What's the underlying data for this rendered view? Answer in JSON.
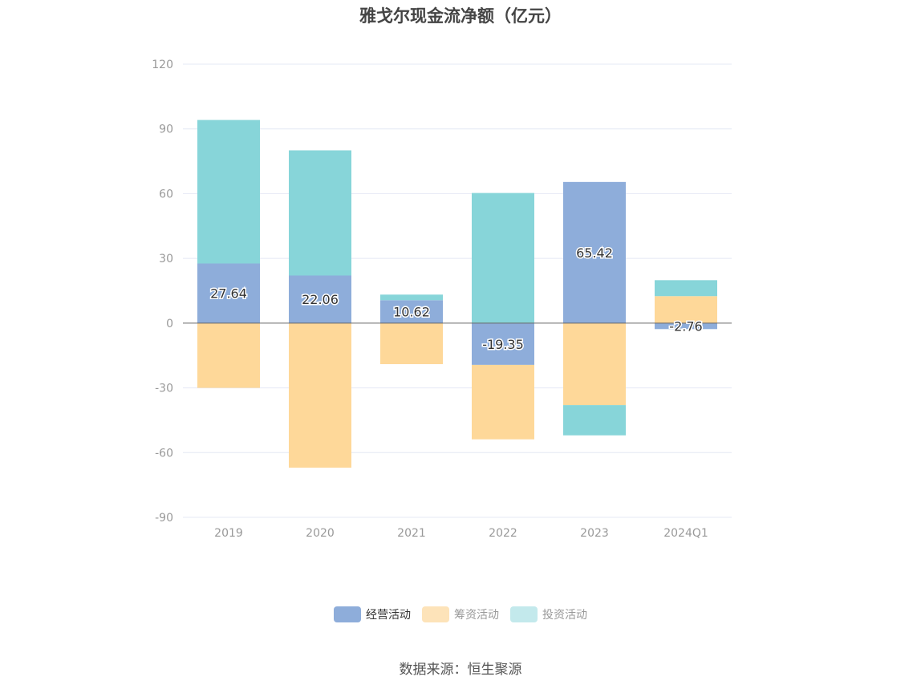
{
  "title": "雅戈尔现金流净额（亿元）",
  "source": "数据来源：恒生聚源",
  "colors": {
    "operating": "#8eadda",
    "financing": "#fed899",
    "investing": "#87d5d9",
    "grid": "#e4e8f4",
    "axis_text": "#999999"
  },
  "legend": [
    {
      "label": "经营活动",
      "color": "#8eadda",
      "active": true
    },
    {
      "label": "筹资活动",
      "color": "#fde3b9",
      "active": false
    },
    {
      "label": "投资活动",
      "color": "#c3e9ec",
      "active": false
    }
  ],
  "chart_data": {
    "type": "bar",
    "stacked": true,
    "title": "雅戈尔现金流净额（亿元）",
    "categories": [
      "2019",
      "2020",
      "2021",
      "2022",
      "2023",
      "2024Q1"
    ],
    "yticks": [
      "120",
      "90",
      "60",
      "30",
      "0",
      "-30",
      "-60",
      "-90"
    ],
    "ylim": [
      -90,
      120
    ],
    "grid": true,
    "legend_position": "bottom",
    "series": [
      {
        "name": "经营活动",
        "color": "#8eadda",
        "values": [
          27.64,
          22.06,
          10.62,
          -19.35,
          65.42,
          -2.76
        ],
        "labels": [
          "27.64",
          "22.06",
          "10.62",
          "-19.35",
          "65.42",
          "-2.76"
        ]
      },
      {
        "name": "筹资活动",
        "color": "#fed899",
        "values": [
          -30.0,
          -67.0,
          -19.0,
          -34.5,
          -38.0,
          12.5
        ]
      },
      {
        "name": "投资活动",
        "color": "#87d5d9",
        "values": [
          66.5,
          58.0,
          2.6,
          60.3,
          -14.0,
          7.4
        ]
      }
    ]
  }
}
